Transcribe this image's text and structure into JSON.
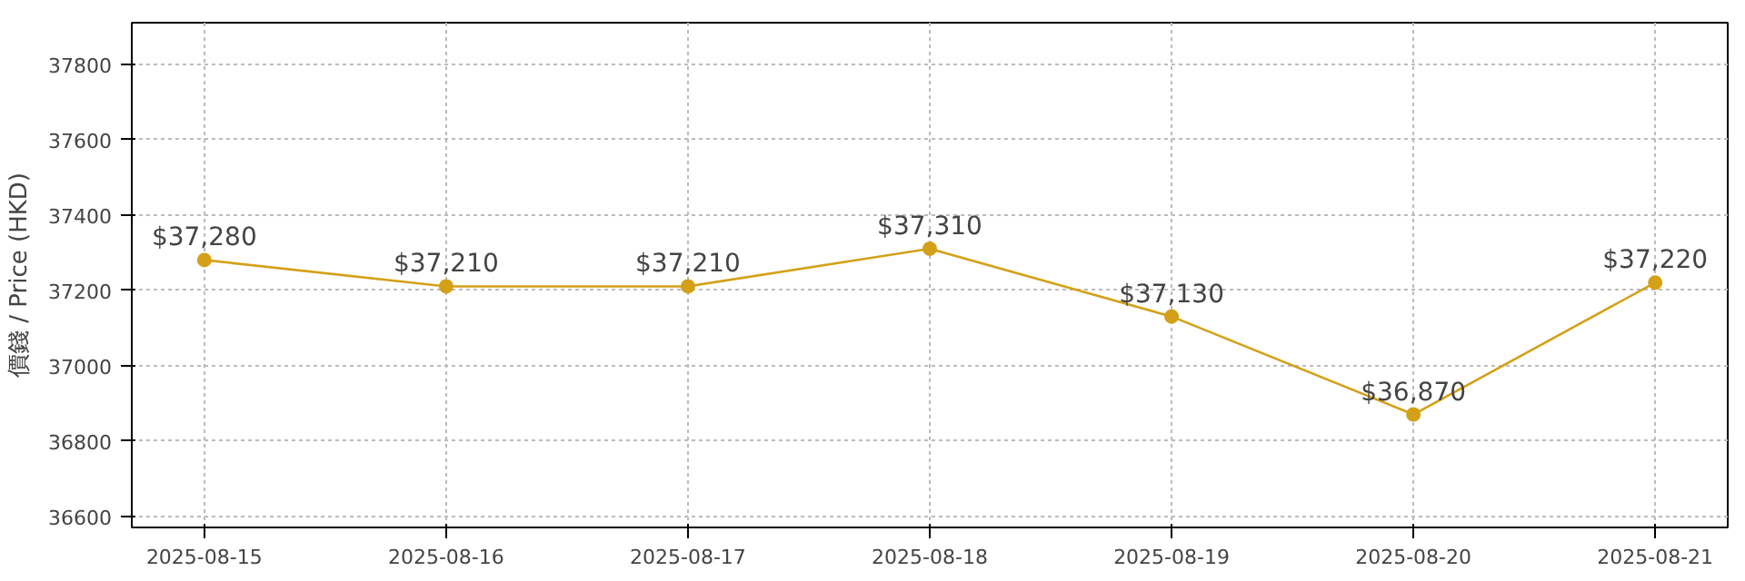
{
  "chart_data": {
    "type": "line",
    "ylabel": "價錢 / Price (HKD)",
    "x": [
      "2025-08-15",
      "2025-08-16",
      "2025-08-17",
      "2025-08-18",
      "2025-08-19",
      "2025-08-20",
      "2025-08-21"
    ],
    "series": [
      {
        "color": "#d4a017",
        "values": [
          37280,
          37210,
          37210,
          37310,
          37130,
          36870,
          37220
        ],
        "value_labels": [
          "$37,280",
          "$37,210",
          "$37,210",
          "$37,310",
          "$37,130",
          "$36,870",
          "$37,220"
        ]
      }
    ],
    "xlim": [
      "2025-08-14T16:48",
      "2025-08-21T07:12"
    ],
    "xticks": [
      "2025-08-15",
      "2025-08-16",
      "2025-08-17",
      "2025-08-18",
      "2025-08-19",
      "2025-08-20",
      "2025-08-21"
    ],
    "ylim": [
      36570,
      37910
    ],
    "yticks": [
      36600,
      36800,
      37000,
      37200,
      37400,
      37600,
      37800
    ],
    "grid": true,
    "marker": "circle",
    "line_style": "solid"
  }
}
